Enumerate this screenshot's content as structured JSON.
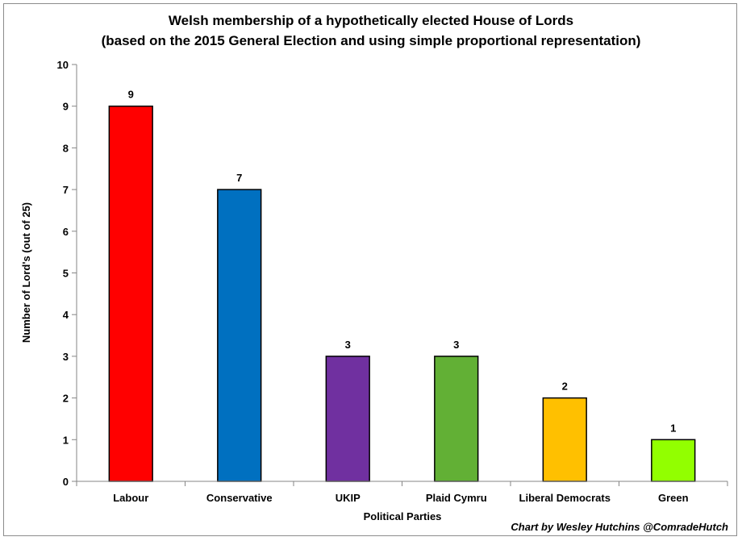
{
  "chart_data": {
    "type": "bar",
    "title": "Welsh membership of a hypothetically elected House of Lords",
    "subtitle": "(based on the 2015 General Election and using simple proportional representation)",
    "xlabel": "Political Parties",
    "ylabel": "Number of Lord's (out of 25)",
    "ylim": [
      0,
      10
    ],
    "yticks": [
      "0",
      "1",
      "2",
      "3",
      "4",
      "5",
      "6",
      "7",
      "8",
      "9",
      "10"
    ],
    "categories": [
      "Labour",
      "Conservative",
      "UKIP",
      "Plaid Cymru",
      "Liberal Democrats",
      "Green"
    ],
    "values": [
      9,
      7,
      3,
      3,
      2,
      1
    ],
    "data_labels": [
      "9",
      "7",
      "3",
      "3",
      "2",
      "1"
    ],
    "colors": [
      "#ff0000",
      "#0070c0",
      "#7030a0",
      "#62b035",
      "#ffc000",
      "#92ff00"
    ],
    "grid": false,
    "legend": "none",
    "credit": "Chart by Wesley Hutchins @ComradeHutch"
  }
}
